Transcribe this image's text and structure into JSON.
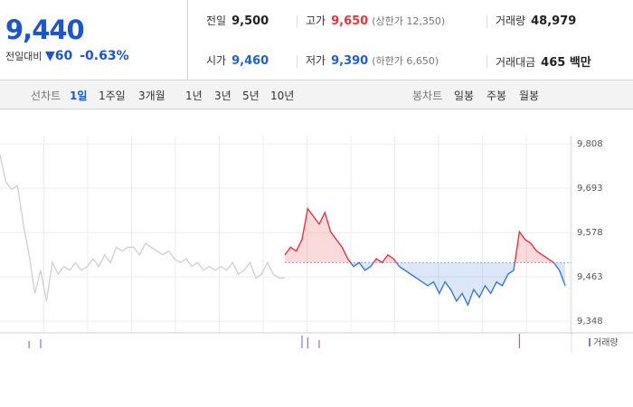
{
  "quote": {
    "price": "9,440",
    "change_label": "전일대비",
    "change": "60",
    "change_rate": "-0.63%"
  },
  "stats": [
    [
      {
        "label": "전일",
        "value": "9,500"
      },
      {
        "label": "고가",
        "value": "9,650",
        "note": "(상한가 12,350)",
        "color": "#e8323c"
      },
      {
        "label": "거래량",
        "value": "48,979"
      }
    ],
    [
      {
        "label": "시가",
        "value": "9,460",
        "color": "#1f5fd0"
      },
      {
        "label": "저가",
        "value": "9,390",
        "note": "(하한가 6,650)",
        "color": "#1f5fd0"
      },
      {
        "label": "거래대금",
        "value": "465 백만"
      }
    ]
  ],
  "tabs": {
    "line_label": "선차트",
    "line": [
      "1일",
      "1주일",
      "3개월",
      "1년",
      "3년",
      "5년",
      "10년"
    ],
    "candle_label": "봉차트",
    "candle": [
      "일봉",
      "주봉",
      "월봉"
    ]
  },
  "chart": {
    "type": "line",
    "ylim": [
      9313,
      9900
    ],
    "yticks": [
      {
        "value": 9808,
        "label": "9,808"
      },
      {
        "value": 9693,
        "label": "9,693"
      },
      {
        "value": 9578,
        "label": "9,578"
      },
      {
        "value": 9463,
        "label": "9,463"
      },
      {
        "value": 9348,
        "label": "9,348"
      }
    ],
    "baseline": 9500,
    "grid": true,
    "prior_values": [
      9780,
      9710,
      9690,
      9700,
      9600,
      9520,
      9420,
      9480,
      9400,
      9500,
      9470,
      9490,
      9480,
      9500,
      9480,
      9490,
      9510,
      9490,
      9520,
      9500,
      9540,
      9530,
      9540,
      9540,
      9520,
      9550,
      9540,
      9530,
      9520,
      9530,
      9510,
      9500,
      9510,
      9490,
      9500,
      9480,
      9490,
      9480,
      9490,
      9480,
      9500,
      9470,
      9480,
      9500,
      9460,
      9470,
      9500,
      9470,
      9460,
      9460
    ],
    "values": [
      9520,
      9540,
      9530,
      9560,
      9640,
      9620,
      9600,
      9630,
      9580,
      9560,
      9540,
      9510,
      9490,
      9500,
      9480,
      9490,
      9510,
      9500,
      9520,
      9510,
      9490,
      9480,
      9470,
      9460,
      9450,
      9440,
      9450,
      9420,
      9450,
      9430,
      9400,
      9420,
      9390,
      9430,
      9410,
      9440,
      9420,
      9450,
      9440,
      9470,
      9480,
      9580,
      9560,
      9550,
      9530,
      9520,
      9510,
      9500,
      9480,
      9440
    ],
    "prior_color": "#cfcfcf",
    "up_color": "#e8323c",
    "down_color": "#3a78d6",
    "volume_label": "거래량",
    "volume_color": "#8f73c9",
    "prior_volume": [
      0,
      0,
      0,
      0,
      0,
      8,
      0,
      10,
      0,
      0,
      0,
      0,
      0,
      0,
      0,
      0,
      0,
      0,
      0,
      0,
      0,
      0,
      0,
      0,
      0,
      0,
      0,
      0,
      0,
      0,
      0,
      0,
      0,
      0,
      0,
      0,
      0,
      0,
      0,
      0,
      0,
      0,
      0,
      0,
      0,
      0,
      0,
      0,
      0,
      0
    ],
    "volume": [
      0,
      0,
      0,
      14,
      12,
      0,
      9,
      0,
      0,
      0,
      0,
      0,
      0,
      0,
      0,
      0,
      0,
      0,
      0,
      0,
      0,
      0,
      0,
      0,
      0,
      0,
      0,
      0,
      0,
      0,
      0,
      0,
      0,
      0,
      0,
      0,
      0,
      0,
      0,
      0,
      0,
      16,
      0,
      0,
      0,
      0,
      0,
      0,
      0,
      0
    ]
  }
}
